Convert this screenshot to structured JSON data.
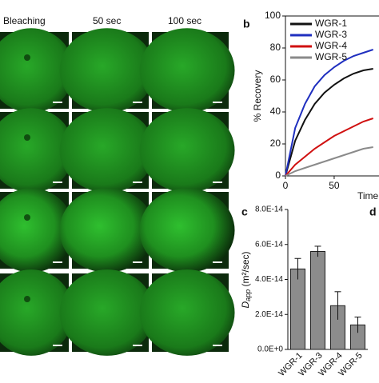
{
  "columns": [
    "Bleaching",
    "50 sec",
    "100 sec"
  ],
  "panel_labels": [
    "b",
    "c",
    "d"
  ],
  "chart_data": [
    {
      "type": "line",
      "ylabel": "% Recovery",
      "xlabel": "Time",
      "x": [
        0,
        10,
        20,
        30,
        40,
        50,
        60,
        70,
        80,
        90
      ],
      "xlim": [
        0,
        96
      ],
      "ylim": [
        0,
        100
      ],
      "xticks": [
        0,
        50
      ],
      "yticks": [
        0,
        20,
        40,
        60,
        80,
        100
      ],
      "series": [
        {
          "name": "WGR-1",
          "color": "#111111",
          "values": [
            0,
            22,
            35,
            45,
            52,
            57,
            61,
            64,
            66,
            67
          ]
        },
        {
          "name": "WGR-3",
          "color": "#1f2fbf",
          "values": [
            0,
            30,
            45,
            56,
            63,
            68,
            72,
            75,
            77,
            79
          ]
        },
        {
          "name": "WGR-4",
          "color": "#d01010",
          "values": [
            0,
            7,
            12,
            17,
            21,
            25,
            28,
            31,
            34,
            36
          ]
        },
        {
          "name": "WGR-5",
          "color": "#8a8a8a",
          "values": [
            0,
            3,
            5,
            7,
            9,
            11,
            13,
            15,
            17,
            18
          ]
        }
      ]
    },
    {
      "type": "bar",
      "ylabel_main": "D",
      "ylabel_sub": "app",
      "ylabel_unit": " (m²/sec)",
      "categories": [
        "WGR-1",
        "WGR-3",
        "WGR-4",
        "WGR-5"
      ],
      "values": [
        4.6e-14,
        5.6e-14,
        2.5e-14,
        1.4e-14
      ],
      "errors": [
        6e-15,
        3e-15,
        8e-15,
        4.5e-15
      ],
      "color": "#8c8c8c",
      "ylim": [
        0,
        8e-14
      ],
      "yticks": [
        {
          "value": 0,
          "label": "0.0E+0"
        },
        {
          "value": 2e-14,
          "label": "2.0E-14"
        },
        {
          "value": 4e-14,
          "label": "4.0E-14"
        },
        {
          "value": 6e-14,
          "label": "6.0E-14"
        },
        {
          "value": 8e-14,
          "label": "8.0E-14"
        }
      ]
    }
  ]
}
